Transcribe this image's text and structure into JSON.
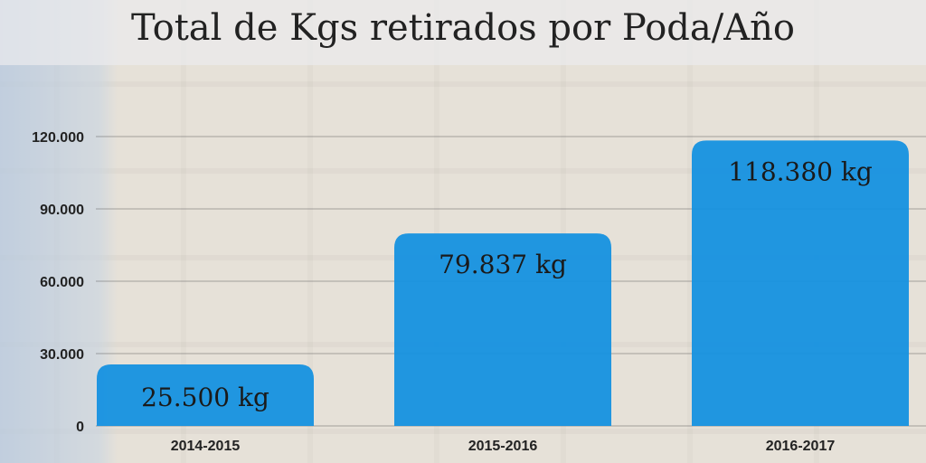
{
  "chart_data": {
    "type": "bar",
    "title": "Total de Kgs retirados por Poda/Año",
    "categories": [
      "2014-2015",
      "2015-2016",
      "2016-2017"
    ],
    "values": [
      25500,
      79837,
      118380
    ],
    "data_labels": [
      "25.500 kg",
      "79.837 kg",
      "118.380 kg"
    ],
    "ylim": [
      0,
      120000
    ],
    "yticks": [
      0,
      30000,
      60000,
      90000,
      120000
    ],
    "ytick_labels": [
      "0",
      "30.000",
      "60.000",
      "90.000",
      "120.000"
    ],
    "grid": true,
    "bar_color": "#1591e0",
    "xlabel": "",
    "ylabel": ""
  }
}
